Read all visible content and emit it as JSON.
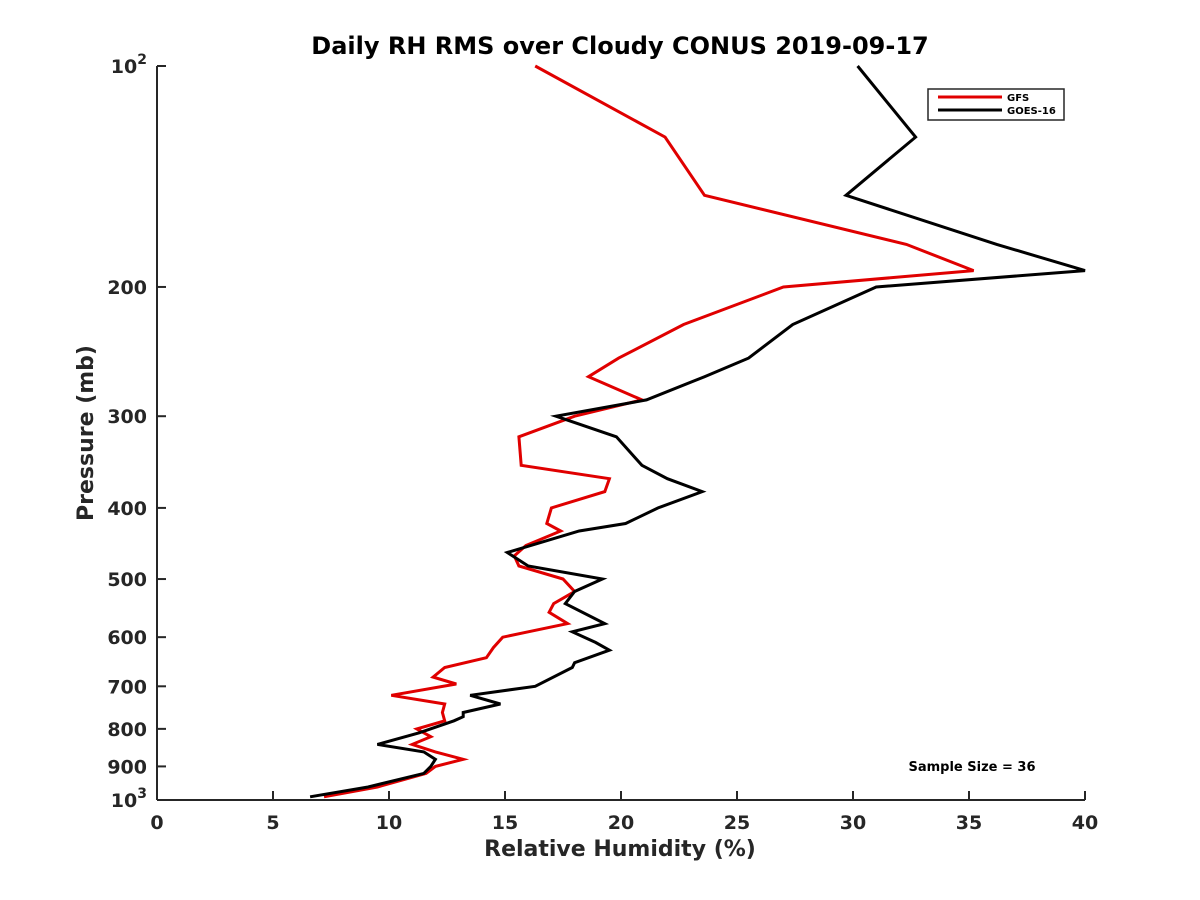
{
  "chart_data": {
    "type": "line",
    "title": "Daily RH RMS over Cloudy CONUS 2019-09-17",
    "xlabel": "Relative Humidity (%)",
    "ylabel": "Pressure (mb)",
    "xlim": [
      0,
      40
    ],
    "ylim": [
      100,
      1000
    ],
    "yscale": "log",
    "y_reversed": true,
    "grid": false,
    "legend_position": "top-right",
    "x_ticks": [
      {
        "value": 0,
        "label": "0"
      },
      {
        "value": 5,
        "label": "5"
      },
      {
        "value": 10,
        "label": "10"
      },
      {
        "value": 15,
        "label": "15"
      },
      {
        "value": 20,
        "label": "20"
      },
      {
        "value": 25,
        "label": "25"
      },
      {
        "value": 30,
        "label": "30"
      },
      {
        "value": 35,
        "label": "35"
      },
      {
        "value": 40,
        "label": "40"
      }
    ],
    "y_ticks": [
      {
        "value": 100,
        "base": "10",
        "exp": "2"
      },
      {
        "value": 200,
        "label": "200"
      },
      {
        "value": 300,
        "label": "300"
      },
      {
        "value": 400,
        "label": "400"
      },
      {
        "value": 500,
        "label": "500"
      },
      {
        "value": 600,
        "label": "600"
      },
      {
        "value": 700,
        "label": "700"
      },
      {
        "value": 800,
        "label": "800"
      },
      {
        "value": 900,
        "label": "900"
      },
      {
        "value": 1000,
        "base": "10",
        "exp": "3"
      }
    ],
    "series": [
      {
        "name": "GFS",
        "color": "#e00000",
        "points": [
          [
            16.3,
            100
          ],
          [
            21.9,
            125
          ],
          [
            23.6,
            150
          ],
          [
            32.3,
            175
          ],
          [
            35.2,
            190
          ],
          [
            27.0,
            200
          ],
          [
            22.7,
            225
          ],
          [
            19.9,
            250
          ],
          [
            18.6,
            265
          ],
          [
            20.9,
            285
          ],
          [
            18.0,
            300
          ],
          [
            15.6,
            320
          ],
          [
            15.7,
            350
          ],
          [
            19.5,
            365
          ],
          [
            19.3,
            380
          ],
          [
            17.0,
            400
          ],
          [
            16.8,
            420
          ],
          [
            17.4,
            430
          ],
          [
            15.9,
            450
          ],
          [
            15.4,
            465
          ],
          [
            15.6,
            480
          ],
          [
            17.5,
            500
          ],
          [
            18.0,
            520
          ],
          [
            17.1,
            540
          ],
          [
            16.9,
            555
          ],
          [
            17.7,
            575
          ],
          [
            16.0,
            590
          ],
          [
            14.9,
            600
          ],
          [
            14.5,
            620
          ],
          [
            14.2,
            640
          ],
          [
            12.4,
            660
          ],
          [
            11.9,
            680
          ],
          [
            12.9,
            695
          ],
          [
            10.1,
            720
          ],
          [
            12.4,
            740
          ],
          [
            12.3,
            760
          ],
          [
            12.4,
            780
          ],
          [
            11.2,
            800
          ],
          [
            11.8,
            820
          ],
          [
            11.0,
            840
          ],
          [
            12.0,
            860
          ],
          [
            13.2,
            880
          ],
          [
            12.0,
            900
          ],
          [
            11.6,
            920
          ],
          [
            9.5,
            960
          ],
          [
            7.2,
            990
          ]
        ]
      },
      {
        "name": "GOES-16",
        "color": "#000000",
        "points": [
          [
            30.2,
            100
          ],
          [
            32.7,
            125
          ],
          [
            29.7,
            150
          ],
          [
            36.2,
            175
          ],
          [
            40.0,
            190
          ],
          [
            31.0,
            200
          ],
          [
            27.4,
            225
          ],
          [
            25.5,
            250
          ],
          [
            23.6,
            265
          ],
          [
            21.1,
            285
          ],
          [
            17.2,
            300
          ],
          [
            19.8,
            320
          ],
          [
            20.9,
            350
          ],
          [
            22.0,
            365
          ],
          [
            23.5,
            380
          ],
          [
            21.6,
            400
          ],
          [
            20.2,
            420
          ],
          [
            18.2,
            430
          ],
          [
            15.1,
            460
          ],
          [
            16.0,
            480
          ],
          [
            19.2,
            500
          ],
          [
            18.0,
            520
          ],
          [
            17.6,
            540
          ],
          [
            19.3,
            575
          ],
          [
            17.9,
            590
          ],
          [
            18.9,
            610
          ],
          [
            19.5,
            625
          ],
          [
            18.0,
            650
          ],
          [
            17.9,
            660
          ],
          [
            16.3,
            700
          ],
          [
            13.5,
            720
          ],
          [
            14.8,
            740
          ],
          [
            13.2,
            760
          ],
          [
            13.2,
            770
          ],
          [
            12.8,
            780
          ],
          [
            11.3,
            810
          ],
          [
            9.5,
            840
          ],
          [
            11.5,
            860
          ],
          [
            12.0,
            880
          ],
          [
            11.8,
            900
          ],
          [
            11.5,
            920
          ],
          [
            9.1,
            960
          ],
          [
            6.6,
            990
          ]
        ]
      }
    ],
    "annotation": "Sample Size = 36"
  }
}
